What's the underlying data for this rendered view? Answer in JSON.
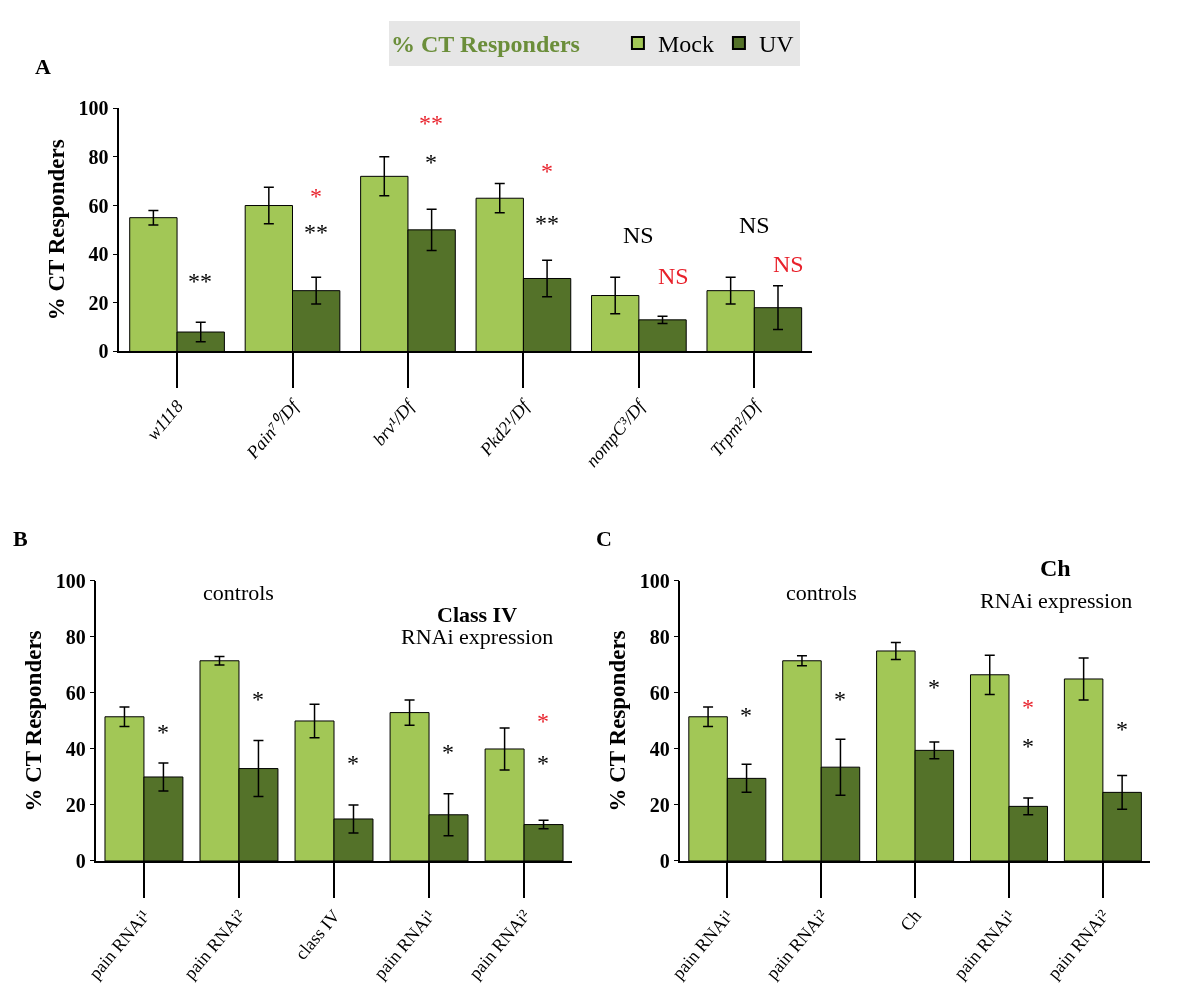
{
  "chart_data": [
    {
      "type": "bar",
      "legend_title": "% CT Responders",
      "ylabel": "% CT Responders",
      "legend": "top",
      "ylim": [
        0,
        100
      ],
      "yticks": [
        0,
        20,
        40,
        60,
        80,
        100
      ],
      "categories": [
        "w1118",
        "Pain⁷⁰/Df",
        "brv¹/Df",
        "Pkd2¹/Df",
        "nompC³/Df",
        "Trpm²/Df"
      ],
      "series": [
        {
          "name": "Mock",
          "color": "#a2c756",
          "values": [
            55,
            60,
            72,
            63,
            23,
            25
          ],
          "errors": [
            3,
            7.5,
            8,
            6,
            7.5,
            5.5
          ]
        },
        {
          "name": "UV",
          "color": "#547229",
          "values": [
            8,
            25,
            50,
            30,
            13,
            18
          ],
          "errors": [
            4,
            5.5,
            8.5,
            7.5,
            1.5,
            9
          ]
        }
      ],
      "annotations": [
        "A",
        "**",
        "*",
        "**",
        "**",
        "*",
        "*",
        "**",
        "NS",
        "NS",
        "NS",
        "NS"
      ]
    },
    {
      "type": "bar",
      "ylabel": "% CT Responders",
      "ylim": [
        0,
        100
      ],
      "yticks": [
        0,
        20,
        40,
        60,
        80,
        100
      ],
      "categories": [
        "pain RNAi¹",
        "pain RNAi²",
        "class IV",
        "pain RNAi¹",
        "pain RNAi²"
      ],
      "series": [
        {
          "color": "#a2c756",
          "values": [
            51.5,
            71.5,
            50,
            53,
            40
          ],
          "errors": [
            3.5,
            1.5,
            6,
            4.5,
            7.5
          ]
        },
        {
          "color": "#547229",
          "values": [
            30,
            33,
            15,
            16.5,
            13
          ],
          "errors": [
            5,
            10,
            5,
            7.5,
            1.5
          ]
        }
      ],
      "annotations": [
        "B",
        "*",
        "*",
        "controls",
        "*",
        "*",
        "Class IV",
        "RNAi expression",
        "*",
        "*"
      ]
    },
    {
      "type": "bar",
      "ylabel": "% CT Responders",
      "ylim": [
        0,
        100
      ],
      "yticks": [
        0,
        20,
        40,
        60,
        80,
        100
      ],
      "categories": [
        "pain RNAi¹",
        "pain RNAi²",
        "Ch",
        "pain RNAi¹",
        "pain RNAi²"
      ],
      "series": [
        {
          "color": "#a2c756",
          "values": [
            51.5,
            71.5,
            75,
            66.5,
            65
          ],
          "errors": [
            3.5,
            1.8,
            3,
            7,
            7.5
          ]
        },
        {
          "color": "#547229",
          "values": [
            29.5,
            33.5,
            39.5,
            19.5,
            24.5
          ],
          "errors": [
            5,
            10,
            3,
            3,
            6
          ]
        }
      ],
      "annotations": [
        "C",
        "*",
        "*",
        "controls",
        "*",
        "*",
        "*",
        "Ch",
        "RNAi expression",
        "*"
      ]
    }
  ]
}
